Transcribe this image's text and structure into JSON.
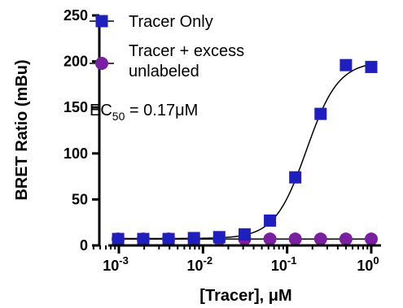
{
  "chart_data": {
    "type": "scatter",
    "x_scale": "log",
    "xlabel": "[Tracer], μM",
    "ylabel": "BRET Ratio (mBu)",
    "xlim": [
      0.0005,
      1.7
    ],
    "ylim": [
      0,
      250
    ],
    "x_ticks": [
      {
        "value": 0.001,
        "base": "10",
        "exp": "-3"
      },
      {
        "value": 0.01,
        "base": "10",
        "exp": "-2"
      },
      {
        "value": 0.1,
        "base": "10",
        "exp": "-1"
      },
      {
        "value": 1,
        "base": "10",
        "exp": "0"
      }
    ],
    "y_ticks": [
      0,
      50,
      100,
      150,
      200,
      250
    ],
    "grid": false,
    "legend_position": "top-left",
    "series": [
      {
        "name": "Tracer Only",
        "marker": "square",
        "color": "#1f1fbf",
        "x": [
          0.00098,
          0.00195,
          0.0039,
          0.0078,
          0.0156,
          0.03125,
          0.0625,
          0.125,
          0.25,
          0.5,
          1.0
        ],
        "y": [
          7,
          7,
          7,
          8,
          9,
          12,
          27,
          74,
          143,
          196,
          194
        ],
        "fit": {
          "bottom": 7.5,
          "top": 200,
          "ec50": 0.17,
          "hill": 2.3
        }
      },
      {
        "name": "Tracer + excess unlabeled",
        "marker": "circle",
        "color": "#7b1fa2",
        "x": [
          0.00098,
          0.00195,
          0.0039,
          0.0078,
          0.0156,
          0.03125,
          0.0625,
          0.125,
          0.25,
          0.5,
          1.0
        ],
        "y": [
          7,
          7,
          7,
          7,
          7,
          7,
          7,
          7,
          7,
          7,
          7
        ],
        "fit": {
          "bottom": 7,
          "top": 7
        }
      }
    ],
    "legend": [
      {
        "lines": [
          "Tracer Only"
        ]
      },
      {
        "lines": [
          "Tracer + excess",
          "unlabeled"
        ]
      }
    ],
    "annotation": {
      "prefix": "EC",
      "sub": "50",
      "suffix": " = 0.17μM"
    }
  }
}
